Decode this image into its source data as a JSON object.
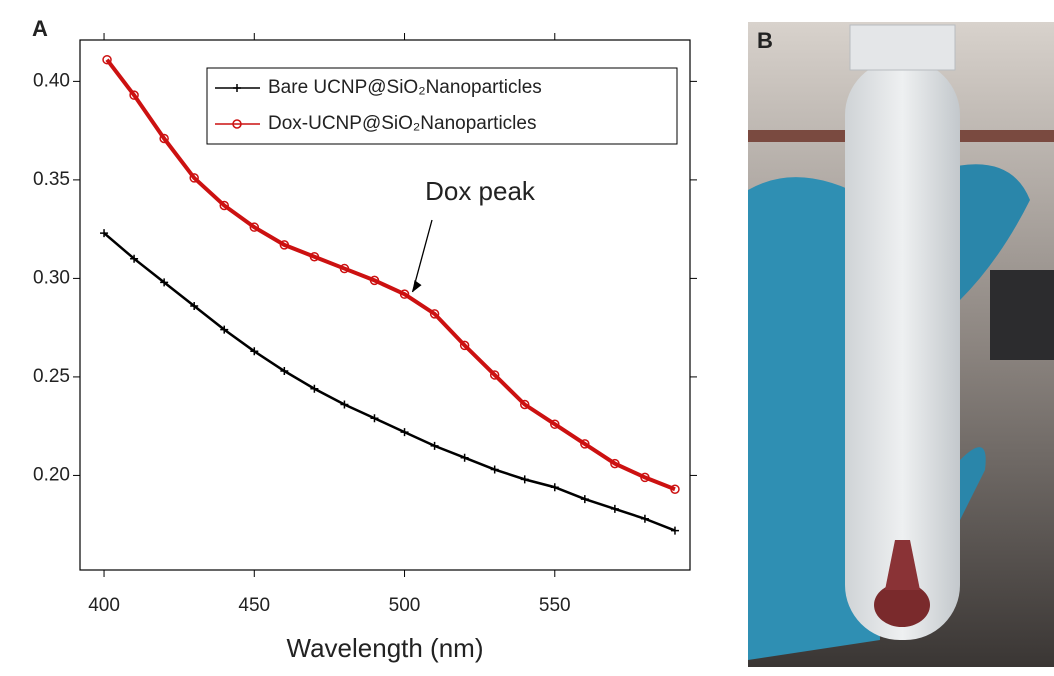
{
  "panel_labels": [
    "A",
    "B"
  ],
  "chart_data": {
    "type": "line",
    "x_label": "Wavelength (nm)",
    "annotation": "Dox peak",
    "annotation_point": [
      500,
      0.29
    ],
    "xlim": [
      392,
      595
    ],
    "xticks": [
      400,
      450,
      500,
      550
    ],
    "ylim": [
      0.152,
      0.421
    ],
    "yticks": [
      {
        "value": 0.2,
        "label": "0.20"
      },
      0.25,
      {
        "value": 0.3,
        "label": "0.30"
      },
      0.35,
      {
        "value": 0.4,
        "label": "0.40"
      }
    ],
    "legend": "upper right",
    "series": [
      {
        "name": "Bare UCNP@SiO₂Nanoparticles",
        "color": "#000000",
        "marker": "plus",
        "x": [
          400,
          410,
          420,
          430,
          440,
          450,
          460,
          470,
          480,
          490,
          500,
          510,
          520,
          530,
          540,
          550,
          560,
          570,
          580,
          590
        ],
        "values": [
          0.323,
          0.31,
          0.298,
          0.286,
          0.274,
          0.263,
          0.253,
          0.244,
          0.236,
          0.229,
          0.222,
          0.215,
          0.209,
          0.203,
          0.198,
          0.194,
          0.188,
          0.183,
          0.178,
          0.172
        ]
      },
      {
        "name": "Dox-UCNP@SiO₂Nanoparticles",
        "color": "#cc1111",
        "marker": "circle",
        "x": [
          401,
          410,
          420,
          430,
          440,
          450,
          460,
          470,
          480,
          490,
          500,
          510,
          520,
          530,
          540,
          550,
          560,
          570,
          580,
          590
        ],
        "values": [
          0.411,
          0.393,
          0.371,
          0.351,
          0.337,
          0.326,
          0.317,
          0.311,
          0.305,
          0.299,
          0.292,
          0.282,
          0.266,
          0.251,
          0.236,
          0.226,
          0.216,
          0.206,
          0.199,
          0.193
        ]
      }
    ]
  }
}
